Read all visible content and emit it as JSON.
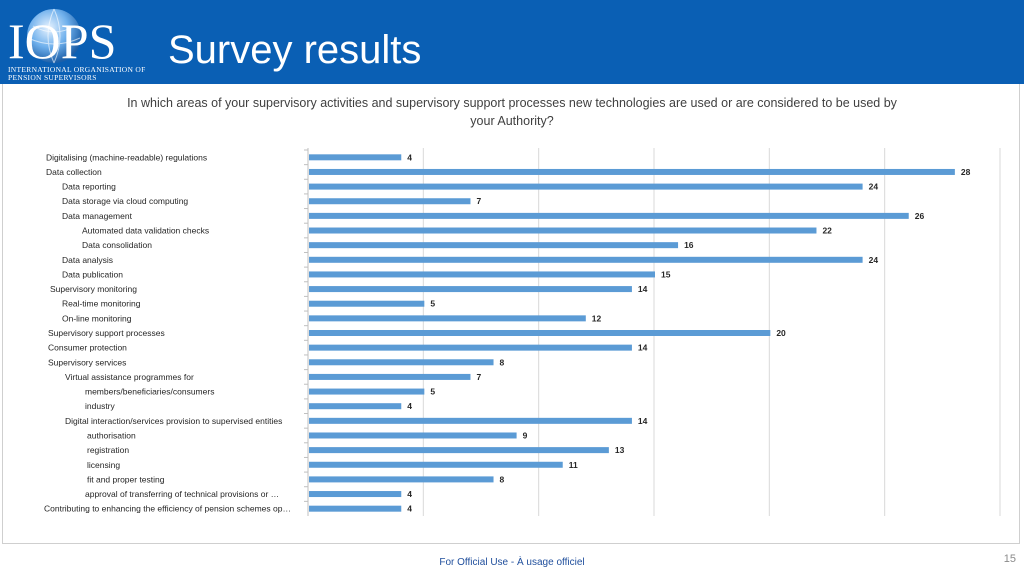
{
  "header": {
    "logo_text": "IOPS",
    "logo_subtext": "INTERNATIONAL ORGANISATION OF PENSION SUPERVISORS",
    "title": "Survey results",
    "brand_color": "#0a5fb4"
  },
  "chart_data": {
    "type": "bar",
    "orientation": "horizontal",
    "title": "In which areas of your supervisory activities and supervisory support processes new technologies are used or are considered to be used by your Authority?",
    "xlim": [
      0,
      30
    ],
    "grid": true,
    "bar_color": "#5b9bd5",
    "categories": [
      "Digitalising (machine-readable) regulations",
      "Data collection",
      "Data reporting",
      "Data storage via cloud computing",
      "Data management",
      "Automated data validation checks",
      "Data consolidation",
      "Data analysis",
      "Data publication",
      "Supervisory monitoring",
      "Real-time monitoring",
      "On-line monitoring",
      "Supervisory support processes",
      "Consumer protection",
      "Supervisory services",
      "Virtual assistance programmes for",
      "members/beneficiaries/consumers",
      "industry",
      "Digital interaction/services provision to supervised entities",
      "authorisation",
      "registration",
      "licensing",
      "fit and proper testing",
      "approval of transferring of technical provisions or …",
      "Contributing to enhancing the efficiency of pension schemes op…"
    ],
    "values": [
      4,
      28,
      24,
      7,
      26,
      22,
      16,
      24,
      15,
      14,
      5,
      12,
      20,
      14,
      8,
      7,
      5,
      4,
      14,
      9,
      13,
      11,
      8,
      4,
      4
    ]
  },
  "footer": {
    "classification": "For Official Use - À usage officiel",
    "page_number": "15"
  }
}
